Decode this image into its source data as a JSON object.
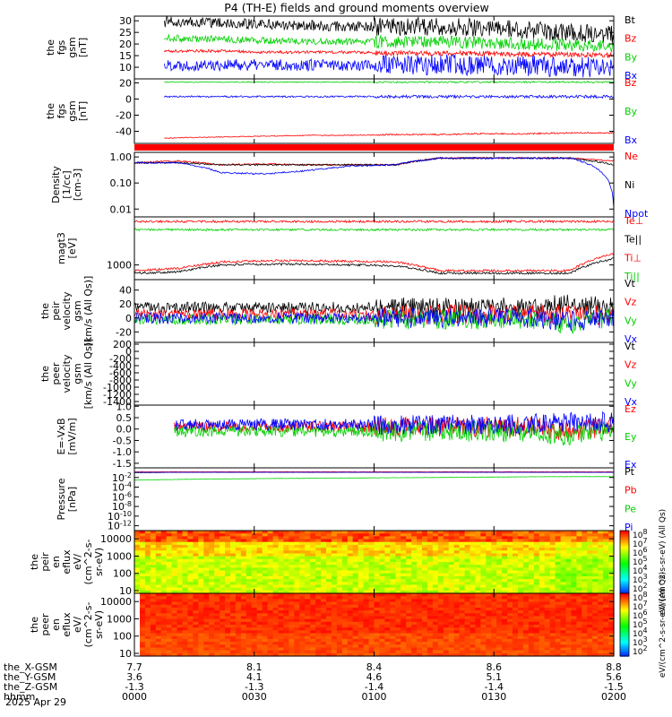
{
  "title": "P4 (TH-E) fields and ground moments overview",
  "colors": {
    "black": "#000000",
    "red": "#ff0000",
    "green": "#00d000",
    "blue": "#0000ff"
  },
  "x_axis": {
    "labels": [
      {
        "name": "the_X-GSM",
        "values": [
          "7.7",
          "8.1",
          "8.4",
          "8.6",
          "8.8"
        ]
      },
      {
        "name": "the_Y-GSM",
        "values": [
          "3.6",
          "4.1",
          "4.6",
          "5.1",
          "5.6"
        ]
      },
      {
        "name": "the_Z-GSM",
        "values": [
          "-1.3",
          "-1.3",
          "-1.4",
          "-1.4",
          "-1.5"
        ]
      },
      {
        "name": "hhmm",
        "values": [
          "0000",
          "0030",
          "0100",
          "0130",
          "0200"
        ]
      }
    ],
    "date": "2025 Apr 29",
    "time_range_min": [
      0,
      120
    ]
  },
  "chart_data": [
    {
      "id": "fgs_mag",
      "type": "line",
      "ylabel": [
        "the",
        "fgs",
        "gsm",
        "[nT]"
      ],
      "ylim": [
        5,
        32
      ],
      "yticks": [
        "30",
        "25",
        "20",
        "15",
        "10"
      ],
      "ytick_values": [
        30,
        25,
        20,
        15,
        10
      ],
      "start_min": 7.5,
      "series": [
        {
          "name": "Bt",
          "color": "#000000",
          "base": 28,
          "noise": 2.2,
          "values": [
            29.5,
            29.5,
            29,
            28.5,
            28,
            27.5,
            27.5,
            27.5,
            27,
            26,
            25,
            24
          ]
        },
        {
          "name": "Bz",
          "color": "#ff0000",
          "base": 17,
          "noise": 0.6,
          "values": [
            17,
            17,
            17,
            16.5,
            16.5,
            16.5,
            16,
            16,
            16,
            15.5,
            15.5,
            15
          ]
        },
        {
          "name": "By",
          "color": "#00d000",
          "base": 22,
          "noise": 1.5,
          "values": [
            23,
            22.5,
            22,
            21.5,
            21,
            21,
            21,
            21,
            20.5,
            20,
            19.5,
            19
          ]
        },
        {
          "name": "Bx",
          "color": "#0000ff",
          "base": 11,
          "noise": 2.5,
          "values": [
            11,
            11,
            11,
            11,
            11,
            11,
            11,
            11,
            11,
            10.5,
            10,
            10
          ]
        }
      ]
    },
    {
      "id": "fgs_mag2",
      "type": "line",
      "ylabel": [
        "the",
        "fgs",
        "gsm",
        "[nT]"
      ],
      "ylim": [
        -55,
        25
      ],
      "yticks": [
        "20",
        "0",
        "-20",
        "-40"
      ],
      "ytick_values": [
        20,
        0,
        -20,
        -40
      ],
      "start_min": 7.5,
      "series": [
        {
          "name": "Bz",
          "color": "#ff0000",
          "base": -44,
          "noise": 0.5,
          "values": [
            -50,
            -48,
            -47,
            -46,
            -45,
            -45,
            -44,
            -44,
            -43,
            -43,
            -42,
            -42
          ]
        },
        {
          "name": "By",
          "color": "#00d000",
          "base": 21,
          "noise": 0.6,
          "values": [
            21,
            21,
            21,
            21,
            21,
            21,
            21,
            21,
            21,
            21,
            21,
            21
          ]
        },
        {
          "name": "Bx",
          "color": "#0000ff",
          "base": 3,
          "noise": 1,
          "values": [
            3,
            3,
            3,
            3,
            3,
            3,
            3,
            3,
            3,
            3,
            3,
            3
          ]
        }
      ]
    },
    {
      "id": "density",
      "type": "line",
      "scale": "log",
      "ylabel": [
        "Density",
        "[1/cc]",
        "[cm-3]"
      ],
      "ylim": [
        0.005,
        1.5
      ],
      "yticks": [
        "1.00",
        "0.10",
        "0.01"
      ],
      "ytick_values": [
        1,
        0.1,
        0.01
      ],
      "start_min": 0,
      "series": [
        {
          "name": "Ne",
          "color": "#ff0000",
          "values": [
            0.6,
            0.7,
            0.5,
            0.55,
            0.5,
            0.5,
            0.5,
            0.9,
            0.9,
            0.9,
            0.9,
            0.7
          ]
        },
        {
          "name": "Ni",
          "color": "#000000",
          "values": [
            0.6,
            0.6,
            0.5,
            0.5,
            0.5,
            0.5,
            0.5,
            0.9,
            0.9,
            0.9,
            0.9,
            0.5
          ]
        },
        {
          "name": "Npot",
          "color": "#0000ff",
          "values": [
            0.6,
            0.6,
            0.25,
            0.22,
            0.3,
            0.45,
            0.5,
            0.9,
            0.9,
            0.9,
            0.9,
            0.01
          ]
        }
      ]
    },
    {
      "id": "temperature",
      "type": "line",
      "scale": "log",
      "ylabel": [
        "magt3",
        "[eV]"
      ],
      "ylim": [
        400,
        20000
      ],
      "yticks": [
        "1000"
      ],
      "ytick_values": [
        1000
      ],
      "start_min": 0,
      "series": [
        {
          "name": "Te⊥",
          "color": "#ff0000",
          "values": [
            700,
            800,
            1200,
            1300,
            1300,
            1250,
            1200,
            700,
            700,
            700,
            700,
            2000
          ]
        },
        {
          "name": "Te||",
          "color": "#000000",
          "values": [
            600,
            650,
            1000,
            1050,
            1050,
            1000,
            950,
            600,
            600,
            600,
            600,
            1500
          ]
        },
        {
          "name": "Ti⊥",
          "color": "#ff0000",
          "values": [
            15000,
            15000,
            15000,
            15000,
            15000,
            15000,
            15000,
            15000,
            15000,
            15000,
            15000,
            15000
          ]
        },
        {
          "name": "Ti||",
          "color": "#00d000",
          "values": [
            9000,
            9000,
            9000,
            9000,
            9000,
            9000,
            9000,
            9000,
            9000,
            9000,
            9000,
            9000
          ]
        }
      ]
    },
    {
      "id": "peir_velocity",
      "type": "line",
      "ylabel": [
        "the",
        "peir",
        "velocity",
        "gsm",
        "[km/s (All Qs)]"
      ],
      "ylim": [
        -35,
        55
      ],
      "yticks": [
        "40",
        "20",
        "0",
        "-20"
      ],
      "ytick_values": [
        40,
        20,
        0,
        -20
      ],
      "start_min": 0,
      "series": [
        {
          "name": "Vt",
          "color": "#000000",
          "values": [
            15,
            15,
            15,
            15,
            15,
            15,
            15,
            15,
            15,
            15,
            20,
            15
          ]
        },
        {
          "name": "Vz",
          "color": "#ff0000",
          "values": [
            5,
            5,
            5,
            5,
            5,
            5,
            5,
            5,
            5,
            5,
            5,
            5
          ]
        },
        {
          "name": "Vy",
          "color": "#00d000",
          "values": [
            -2,
            -2,
            -2,
            -2,
            -2,
            -2,
            -2,
            -2,
            -2,
            -2,
            -10,
            0
          ]
        },
        {
          "name": "Vx",
          "color": "#0000ff",
          "values": [
            0,
            0,
            0,
            0,
            0,
            0,
            0,
            0,
            0,
            0,
            -5,
            0
          ]
        }
      ]
    },
    {
      "id": "peer_velocity",
      "type": "line",
      "ylabel": [
        "the",
        "peer",
        "velocity",
        "gsm",
        "[km/s (All Qs)]"
      ],
      "ylim": [
        -1500,
        250
      ],
      "yticks": [
        "200",
        "0",
        "-200",
        "-400",
        "-600",
        "-800",
        "-1000",
        "-1200",
        "-1400"
      ],
      "ytick_values": [
        200,
        0,
        -200,
        -400,
        -600,
        -800,
        -1000,
        -1200,
        -1400
      ],
      "series": [
        {
          "name": "Vt",
          "color": "#000000",
          "values": []
        },
        {
          "name": "Vz",
          "color": "#ff0000",
          "values": []
        },
        {
          "name": "Vy",
          "color": "#00d000",
          "values": []
        },
        {
          "name": "Vx",
          "color": "#0000ff",
          "values": []
        }
      ]
    },
    {
      "id": "efield",
      "type": "line",
      "ylabel": [
        "E=-VxB",
        "[mV/m]"
      ],
      "ylim": [
        -1.7,
        1.05
      ],
      "yticks": [
        "1.0",
        "0.5",
        "0.0",
        "-0.5",
        "-1.0",
        "-1.5"
      ],
      "ytick_values": [
        1,
        0.5,
        0,
        -0.5,
        -1,
        -1.5
      ],
      "start_min": 10,
      "series": [
        {
          "name": "Ez",
          "color": "#ff0000",
          "values": [
            0.1,
            0.1,
            0.1,
            0.1,
            0.1,
            0.1,
            0.1,
            0.1,
            0.1,
            0.1,
            -0.1,
            0.1
          ]
        },
        {
          "name": "Ey",
          "color": "#00d000",
          "values": [
            -0.1,
            -0.1,
            -0.1,
            -0.1,
            -0.1,
            -0.1,
            -0.1,
            -0.1,
            -0.1,
            -0.1,
            -0.3,
            0
          ]
        },
        {
          "name": "Ex",
          "color": "#0000ff",
          "values": [
            0.2,
            0.2,
            0.2,
            0.2,
            0.2,
            0.2,
            0.2,
            0.2,
            0.2,
            0.2,
            0.3,
            0.3
          ]
        }
      ]
    },
    {
      "id": "pressure",
      "type": "line",
      "scale": "log",
      "ylabel": [
        "Pressure",
        "[nPa]"
      ],
      "ylim": [
        1e-13,
        1
      ],
      "yticks": [
        "10^-2",
        "10^-4",
        "10^-6",
        "10^-8",
        "10^-10",
        "10^-12"
      ],
      "ytick_values": [
        0.01,
        0.0001,
        1e-06,
        1e-08,
        1e-10,
        1e-12
      ],
      "start_min": 0,
      "series": [
        {
          "name": "Pt",
          "color": "#000000",
          "values": [
            0.1,
            0.12,
            0.12,
            0.12,
            0.12,
            0.12,
            0.12,
            0.12,
            0.12,
            0.12,
            0.12,
            0.12
          ]
        },
        {
          "name": "Pb",
          "color": "#ff0000",
          "values": [
            0.15,
            0.15,
            0.15,
            0.15,
            0.15,
            0.15,
            0.15,
            0.15,
            0.15,
            0.15,
            0.15,
            0.15
          ]
        },
        {
          "name": "Pe",
          "color": "#00d000",
          "values": [
            0.003,
            0.004,
            0.005,
            0.006,
            0.007,
            0.008,
            0.009,
            0.01,
            0.012,
            0.014,
            0.015,
            0.015
          ]
        },
        {
          "name": "Pi",
          "color": "#0000ff",
          "values": [
            0.12,
            0.12,
            0.12,
            0.12,
            0.12,
            0.12,
            0.12,
            0.12,
            0.12,
            0.12,
            0.12,
            0.12
          ]
        }
      ]
    },
    {
      "id": "peir_en_eflux",
      "type": "heatmap",
      "ylabel": [
        "the",
        "peir",
        "en",
        "eflux",
        "eV/",
        "(cm^2-s-",
        "sr-eV)"
      ],
      "scale": "log",
      "ylim": [
        7,
        30000
      ],
      "yticks": [
        "10000",
        "1000",
        "100",
        "10"
      ],
      "ytick_values": [
        10000,
        1000,
        100,
        10
      ],
      "colorbar": {
        "label": "eV/(cm^2-s-sr-eV) (All Qs)",
        "ticks": [
          "10^8",
          "10^7",
          "10^6",
          "10^5",
          "10^4",
          "10^3",
          "10^2"
        ]
      }
    },
    {
      "id": "peer_en_eflux",
      "type": "heatmap",
      "ylabel": [
        "the",
        "peer",
        "en",
        "eflux",
        "eV/",
        "(cm^2-s-",
        "sr-eV)"
      ],
      "scale": "log",
      "ylim": [
        7,
        30000
      ],
      "yticks": [
        "10000",
        "1000",
        "100",
        "10"
      ],
      "ytick_values": [
        10000,
        1000,
        100,
        10
      ],
      "colorbar": {
        "label": "eV/(cm^2-s-sr-eV) (All Qs)",
        "ticks": [
          "10^8",
          "10^7",
          "10^6",
          "10^5",
          "10^4",
          "10^3",
          "10^2"
        ]
      }
    }
  ]
}
